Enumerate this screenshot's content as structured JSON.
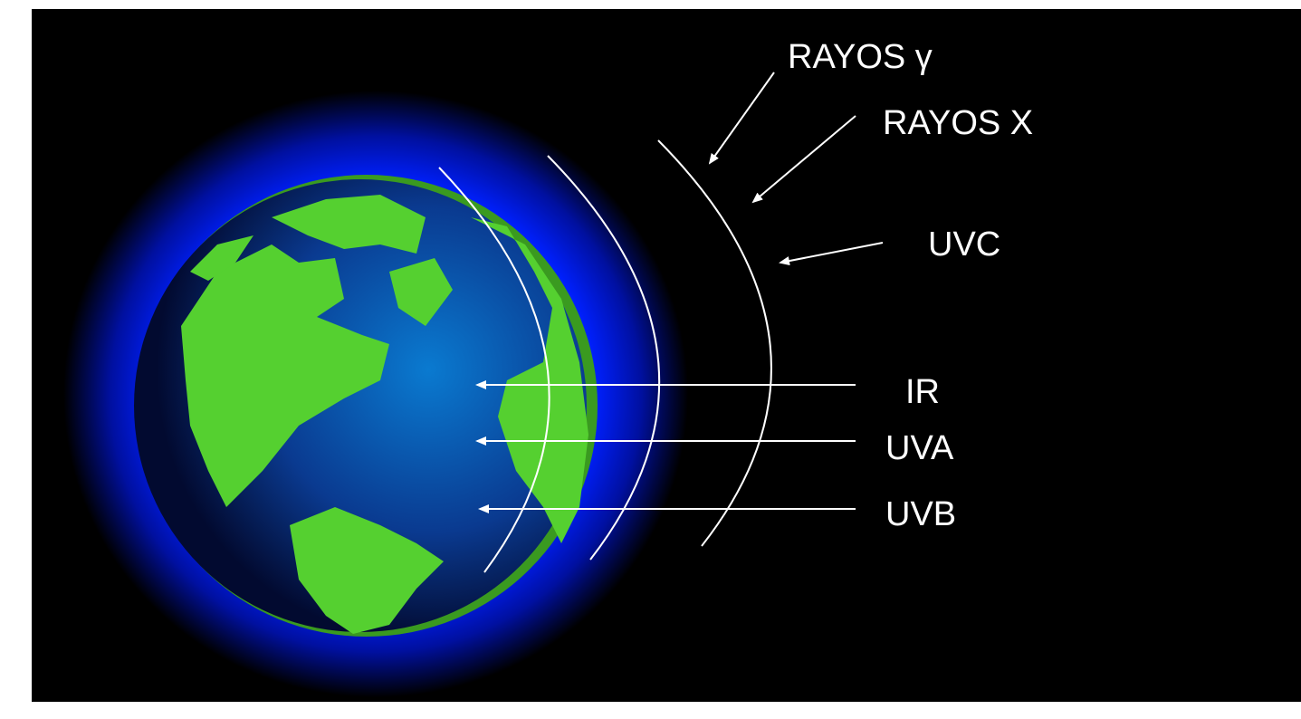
{
  "labels": [
    "RAYOS γ",
    "RAYOS X",
    "UVC",
    "IR",
    "UVA",
    "UVB"
  ]
}
